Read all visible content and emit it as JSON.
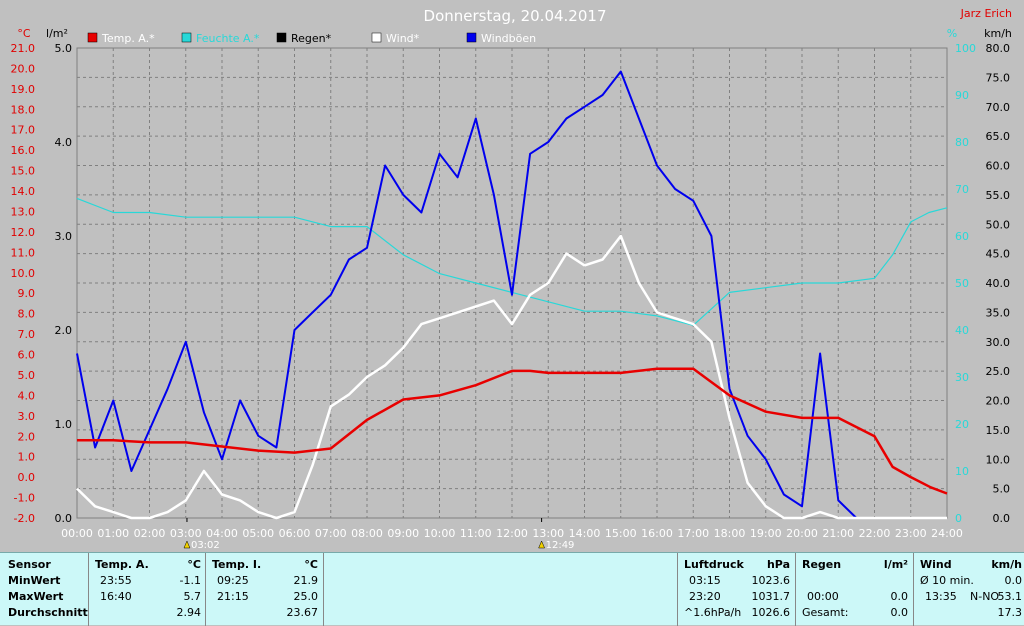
{
  "header": {
    "title": "Donnerstag, 20.04.2017",
    "author": "Jarz Erich"
  },
  "colors": {
    "temp": "#e80000",
    "humidity": "#28d8d8",
    "rain": "#000000",
    "wind": "#ffffff",
    "gust": "#0000ee",
    "background": "#c0c0c0",
    "panel": "#ccf8f8"
  },
  "chart_data": {
    "type": "line",
    "axes": {
      "left_temp": {
        "unit": "°C",
        "min": -2.0,
        "max": 21.0,
        "step": 1.0
      },
      "left_rain": {
        "unit": "l/m²",
        "min": 0.0,
        "max": 5.0,
        "step": 1.0
      },
      "right_humidity": {
        "unit": "%",
        "min": 0,
        "max": 100,
        "step": 10
      },
      "right_wind": {
        "unit": "km/h",
        "min": 0.0,
        "max": 80.0,
        "step": 5.0
      },
      "x_ticks": [
        "00:00",
        "01:00",
        "02:00",
        "03:00",
        "04:00",
        "05:00",
        "06:00",
        "07:00",
        "08:00",
        "09:00",
        "10:00",
        "11:00",
        "12:00",
        "13:00",
        "14:00",
        "15:00",
        "16:00",
        "17:00",
        "18:00",
        "19:00",
        "20:00",
        "21:00",
        "22:00",
        "23:00",
        "24:00"
      ]
    },
    "legend": [
      "Temp. A.*",
      "Feuchte A.*",
      "Regen*",
      "Wind*",
      "Windböen"
    ],
    "markers": [
      {
        "time": "03:02"
      },
      {
        "time": "12:49"
      }
    ],
    "grid": true,
    "series": [
      {
        "name": "Temp. A.*",
        "axis": "left_temp",
        "x": [
          0,
          1,
          2,
          3,
          4,
          5,
          6,
          7,
          8,
          9,
          10,
          11,
          12,
          12.5,
          13,
          14,
          15,
          16,
          17,
          18,
          19,
          20,
          21,
          22,
          22.5,
          23,
          23.55,
          24
        ],
        "values": [
          1.8,
          1.8,
          1.7,
          1.7,
          1.5,
          1.3,
          1.2,
          1.4,
          2.8,
          3.8,
          4.0,
          4.5,
          5.2,
          5.2,
          5.1,
          5.1,
          5.1,
          5.3,
          5.3,
          4.0,
          3.2,
          2.9,
          2.9,
          2.0,
          0.5,
          0.0,
          -0.5,
          -0.8
        ]
      },
      {
        "name": "Feuchte A.*",
        "axis": "right_humidity",
        "x": [
          0,
          1,
          2,
          3,
          4,
          5,
          6,
          7,
          8,
          9,
          10,
          11,
          12,
          13,
          14,
          15,
          16,
          17,
          18,
          19,
          20,
          21,
          22,
          22.5,
          23,
          23.5,
          24
        ],
        "values": [
          68,
          65,
          65,
          64,
          64,
          64,
          64,
          62,
          62,
          56,
          52,
          50,
          48,
          46,
          44,
          44,
          43,
          41,
          48,
          49,
          50,
          50,
          51,
          56,
          63,
          65,
          66
        ]
      },
      {
        "name": "Wind*",
        "axis": "right_wind",
        "x": [
          0,
          0.5,
          1,
          1.5,
          2,
          2.5,
          3,
          3.5,
          4,
          4.5,
          5,
          5.5,
          6,
          6.5,
          7,
          7.5,
          8,
          8.5,
          9,
          9.5,
          10,
          10.5,
          11,
          11.5,
          12,
          12.5,
          13,
          13.5,
          14,
          14.5,
          15,
          15.5,
          16,
          16.5,
          17,
          17.5,
          18,
          18.5,
          19,
          19.5,
          20,
          20.5,
          21,
          21.5,
          22,
          23,
          24
        ],
        "values": [
          5,
          2,
          1,
          0,
          0,
          1,
          3,
          8,
          4,
          3,
          1,
          0,
          1,
          9,
          19,
          21,
          24,
          26,
          29,
          33,
          34,
          35,
          36,
          37,
          33,
          38,
          40,
          45,
          43,
          44,
          48,
          40,
          35,
          34,
          33,
          30,
          17,
          6,
          2,
          0,
          0,
          1,
          0,
          0,
          0,
          0,
          0
        ]
      },
      {
        "name": "Windböen",
        "axis": "right_wind",
        "x": [
          0,
          0.5,
          1,
          1.5,
          2,
          2.5,
          3,
          3.5,
          4,
          4.5,
          5,
          5.5,
          6,
          6.5,
          7,
          7.5,
          8,
          8.5,
          9,
          9.5,
          10,
          10.5,
          11,
          11.5,
          12,
          12.5,
          13,
          13.5,
          14,
          14.5,
          15,
          15.5,
          16,
          16.5,
          17,
          17.5,
          18,
          18.5,
          19,
          19.5,
          20,
          20.5,
          21,
          21.5,
          22,
          23,
          24
        ],
        "values": [
          28,
          12,
          20,
          8,
          15,
          22,
          30,
          18,
          10,
          20,
          14,
          12,
          32,
          35,
          38,
          44,
          46,
          60,
          55,
          52,
          62,
          58,
          68,
          55,
          38,
          62,
          64,
          68,
          70,
          72,
          76,
          68,
          60,
          56,
          54,
          48,
          22,
          14,
          10,
          4,
          2,
          28,
          3,
          0,
          0,
          0,
          0
        ]
      }
    ]
  },
  "stats": {
    "sensor": {
      "header": "Sensor",
      "rows": [
        "MinWert",
        "MaxWert",
        "Durchschnitt"
      ]
    },
    "temp_a": {
      "header": "Temp. A.",
      "unit": "°C",
      "min_time": "23:55",
      "min": "-1.1",
      "max_time": "16:40",
      "max": "5.7",
      "avg": "2.94"
    },
    "temp_i": {
      "header": "Temp. I.",
      "unit": "°C",
      "min_time": "09:25",
      "min": "21.9",
      "max_time": "21:15",
      "max": "25.0",
      "avg": "23.67"
    },
    "pressure": {
      "header": "Luftdruck",
      "unit": "hPa",
      "min_time": "03:15",
      "min": "1023.6",
      "max_time": "23:20",
      "max": "1031.7",
      "trend": "^1.6hPa/h",
      "current": "1026.6"
    },
    "rain": {
      "header": "Regen",
      "unit": "l/m²",
      "max_time": "00:00",
      "max": "0.0",
      "total_label": "Gesamt:",
      "total": "0.0"
    },
    "wind": {
      "header": "Wind",
      "unit": "km/h",
      "avg_label": "Ø 10 min.",
      "avg": "0.0",
      "max_time": "13:35",
      "max_dir": "N-NO",
      "max": "53.1",
      "current": "17.3"
    }
  }
}
